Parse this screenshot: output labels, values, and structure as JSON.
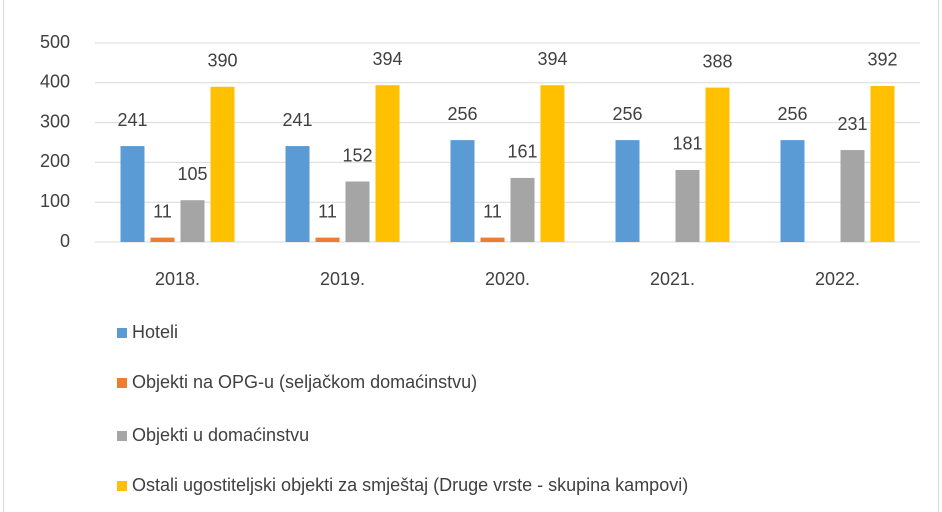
{
  "chart_data": {
    "type": "bar",
    "categories": [
      "2018.",
      "2019.",
      "2020.",
      "2021.",
      "2022."
    ],
    "series": [
      {
        "name": "Hoteli",
        "color": "#5b9bd5",
        "values": [
          241,
          241,
          256,
          256,
          256
        ]
      },
      {
        "name": "Objekti na OPG-u (seljačkom domaćinstvu)",
        "color": "#ed7d31",
        "values": [
          11,
          11,
          11,
          null,
          null
        ]
      },
      {
        "name": "Objekti u domaćinstvu",
        "color": "#a5a5a5",
        "values": [
          105,
          152,
          161,
          181,
          231
        ]
      },
      {
        "name": "Ostali ugostiteljski objekti za smještaj (Druge vrste - skupina kampovi)",
        "color": "#ffc000",
        "values": [
          390,
          394,
          394,
          388,
          392
        ]
      }
    ],
    "ylim": [
      0,
      500
    ],
    "yticks": [
      0,
      100,
      200,
      300,
      400,
      500
    ],
    "grid": true,
    "legend": "bottom"
  }
}
